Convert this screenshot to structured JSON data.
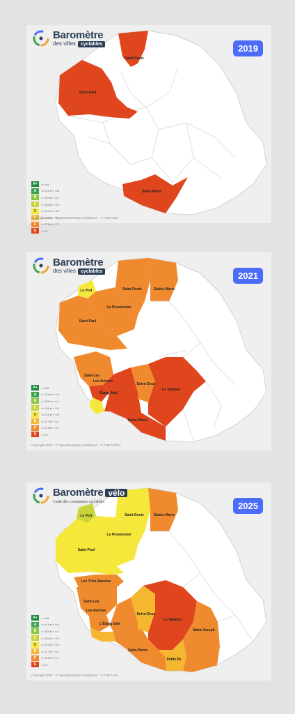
{
  "logo": {
    "title": "Baromètre",
    "sub": "des villes",
    "pill": "cyclables",
    "velo": "vélo",
    "subtitle_2025": "Carte des communes cyclables"
  },
  "legend": [
    {
      "grade": "A+",
      "range": ">= 4.6",
      "color": "#1e8a3e"
    },
    {
      "grade": "A",
      "range": ">= 4.1 et < 4.6",
      "color": "#3fa34d"
    },
    {
      "grade": "B",
      "range": ">= 3.9 et < 4.1",
      "color": "#8cc63f"
    },
    {
      "grade": "C",
      "range": ">= 3.5 et < 3.9",
      "color": "#cbd33a"
    },
    {
      "grade": "D",
      "range": ">= 3.1 et < 3.5",
      "color": "#f6e83a"
    },
    {
      "grade": "E",
      "range": ">= 2.7 et < 3.1",
      "color": "#f6b730"
    },
    {
      "grade": "F",
      "range": ">= 2.3 et < 2.7",
      "color": "#ef8a2f"
    },
    {
      "grade": "G",
      "range": "< 2.3",
      "color": "#e0461e"
    }
  ],
  "colors": {
    "G": "#e0461e",
    "F": "#ef8a2f",
    "E": "#f6b730",
    "D": "#f6e83a",
    "C": "#cbd33a",
    "white": "#ffffff",
    "badge": "#4a6cf7"
  },
  "panels": [
    {
      "year": "2019",
      "copyright": "Copyright 2022 · © OpenStreetMap contributors · © FUB  0.8/5",
      "labels": {
        "saint_denis": "Saint-Denis",
        "saint_paul": "Saint-Paul",
        "saint_pierre": "Saint-Pierre"
      }
    },
    {
      "year": "2021",
      "copyright": "Copyright 2022 · © OpenStreetMap contributors · © FUB  0.7/5/4",
      "labels": {
        "le_port": "Le Port",
        "saint_denis": "Saint-Denis",
        "sainte_marie": "Sainte-Marie",
        "la_possession": "La Possession",
        "saint_paul": "Saint-Paul",
        "saint_leu": "Saint-Leu",
        "les_avirons": "Les Avirons",
        "etang_sale": "Étang-Salé",
        "entre_deux": "Entre-Deux",
        "le_tampon": "Le Tampon",
        "saint_pierre": "Saint-Pierre"
      }
    },
    {
      "year": "2025",
      "copyright": "Copyright 2025 · © OpenStreetMap contributors · © FUB  5.4/5",
      "labels": {
        "le_port": "Le Port",
        "saint_denis": "Saint-Denis",
        "sainte_marie": "Sainte-Marie",
        "la_possession": "La Possession",
        "saint_paul": "Saint-Paul",
        "les_trois_bassins": "Les Trois-Bassins",
        "saint_leu": "Saint-Leu",
        "les_avirons": "Les Avirons",
        "etang_sale": "L'Étang-Salé",
        "entre_deux": "Entre-Deux",
        "le_tampon": "Le Tampon",
        "saint_joseph": "Saint-Joseph",
        "saint_pierre": "Saint-Pierre",
        "petite_ile": "Petite-Île"
      }
    }
  ]
}
